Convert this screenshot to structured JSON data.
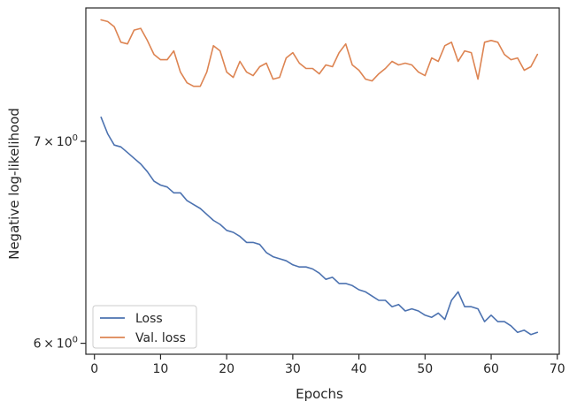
{
  "chart_data": {
    "type": "line",
    "xlabel": "Epochs",
    "ylabel": "Negative log-likelihood",
    "yscale": "log",
    "xlim": [
      -1.3,
      70.3
    ],
    "ylim": [
      5.95,
      7.75
    ],
    "xticks": [
      0,
      10,
      20,
      30,
      40,
      50,
      60,
      70
    ],
    "xtick_labels": [
      "0",
      "10",
      "20",
      "30",
      "40",
      "50",
      "60",
      "70"
    ],
    "yticks": [
      6,
      7
    ],
    "ytick_labels": [
      {
        "base": "6",
        "exp": "0"
      },
      {
        "base": "7",
        "exp": "0"
      }
    ],
    "legend_position": "lower-left",
    "grid": false,
    "series": [
      {
        "name": "Loss",
        "color": "#4c72b0",
        "x": [
          1,
          2,
          3,
          4,
          5,
          6,
          7,
          8,
          9,
          10,
          11,
          12,
          13,
          14,
          15,
          16,
          17,
          18,
          19,
          20,
          21,
          22,
          23,
          24,
          25,
          26,
          27,
          28,
          29,
          30,
          31,
          32,
          33,
          34,
          35,
          36,
          37,
          38,
          39,
          40,
          41,
          42,
          43,
          44,
          45,
          46,
          47,
          48,
          49,
          50,
          51,
          52,
          53,
          54,
          55,
          56,
          57,
          58,
          59,
          60,
          61,
          62,
          63,
          64,
          65,
          66,
          67
        ],
        "values": [
          7.13,
          7.04,
          6.98,
          6.97,
          6.94,
          6.91,
          6.88,
          6.84,
          6.79,
          6.77,
          6.76,
          6.73,
          6.73,
          6.69,
          6.67,
          6.65,
          6.62,
          6.59,
          6.57,
          6.54,
          6.53,
          6.51,
          6.48,
          6.48,
          6.47,
          6.43,
          6.41,
          6.4,
          6.39,
          6.37,
          6.36,
          6.36,
          6.35,
          6.33,
          6.3,
          6.31,
          6.28,
          6.28,
          6.27,
          6.25,
          6.24,
          6.22,
          6.2,
          6.2,
          6.17,
          6.18,
          6.15,
          6.16,
          6.15,
          6.13,
          6.12,
          6.14,
          6.11,
          6.2,
          6.24,
          6.17,
          6.17,
          6.16,
          6.1,
          6.13,
          6.1,
          6.1,
          6.08,
          6.05,
          6.06,
          6.04,
          6.05
        ]
      },
      {
        "name": "Val. loss",
        "color": "#dd8452",
        "x": [
          1,
          2,
          3,
          4,
          5,
          6,
          7,
          8,
          9,
          10,
          11,
          12,
          13,
          14,
          15,
          16,
          17,
          18,
          19,
          20,
          21,
          22,
          23,
          24,
          25,
          26,
          27,
          28,
          29,
          30,
          31,
          32,
          33,
          34,
          35,
          36,
          37,
          38,
          39,
          40,
          41,
          42,
          43,
          44,
          45,
          46,
          47,
          48,
          49,
          50,
          51,
          52,
          53,
          54,
          55,
          56,
          57,
          58,
          59,
          60,
          61,
          62,
          63,
          64,
          65,
          66,
          67
        ],
        "values": [
          7.68,
          7.67,
          7.64,
          7.55,
          7.54,
          7.62,
          7.63,
          7.56,
          7.48,
          7.45,
          7.45,
          7.5,
          7.38,
          7.32,
          7.3,
          7.3,
          7.38,
          7.53,
          7.5,
          7.38,
          7.35,
          7.44,
          7.38,
          7.36,
          7.41,
          7.43,
          7.34,
          7.35,
          7.46,
          7.49,
          7.43,
          7.4,
          7.4,
          7.37,
          7.42,
          7.41,
          7.49,
          7.54,
          7.42,
          7.39,
          7.34,
          7.33,
          7.37,
          7.4,
          7.44,
          7.42,
          7.43,
          7.42,
          7.38,
          7.36,
          7.46,
          7.44,
          7.53,
          7.55,
          7.44,
          7.5,
          7.49,
          7.34,
          7.55,
          7.56,
          7.55,
          7.48,
          7.45,
          7.46,
          7.39,
          7.41,
          7.48
        ]
      }
    ]
  }
}
